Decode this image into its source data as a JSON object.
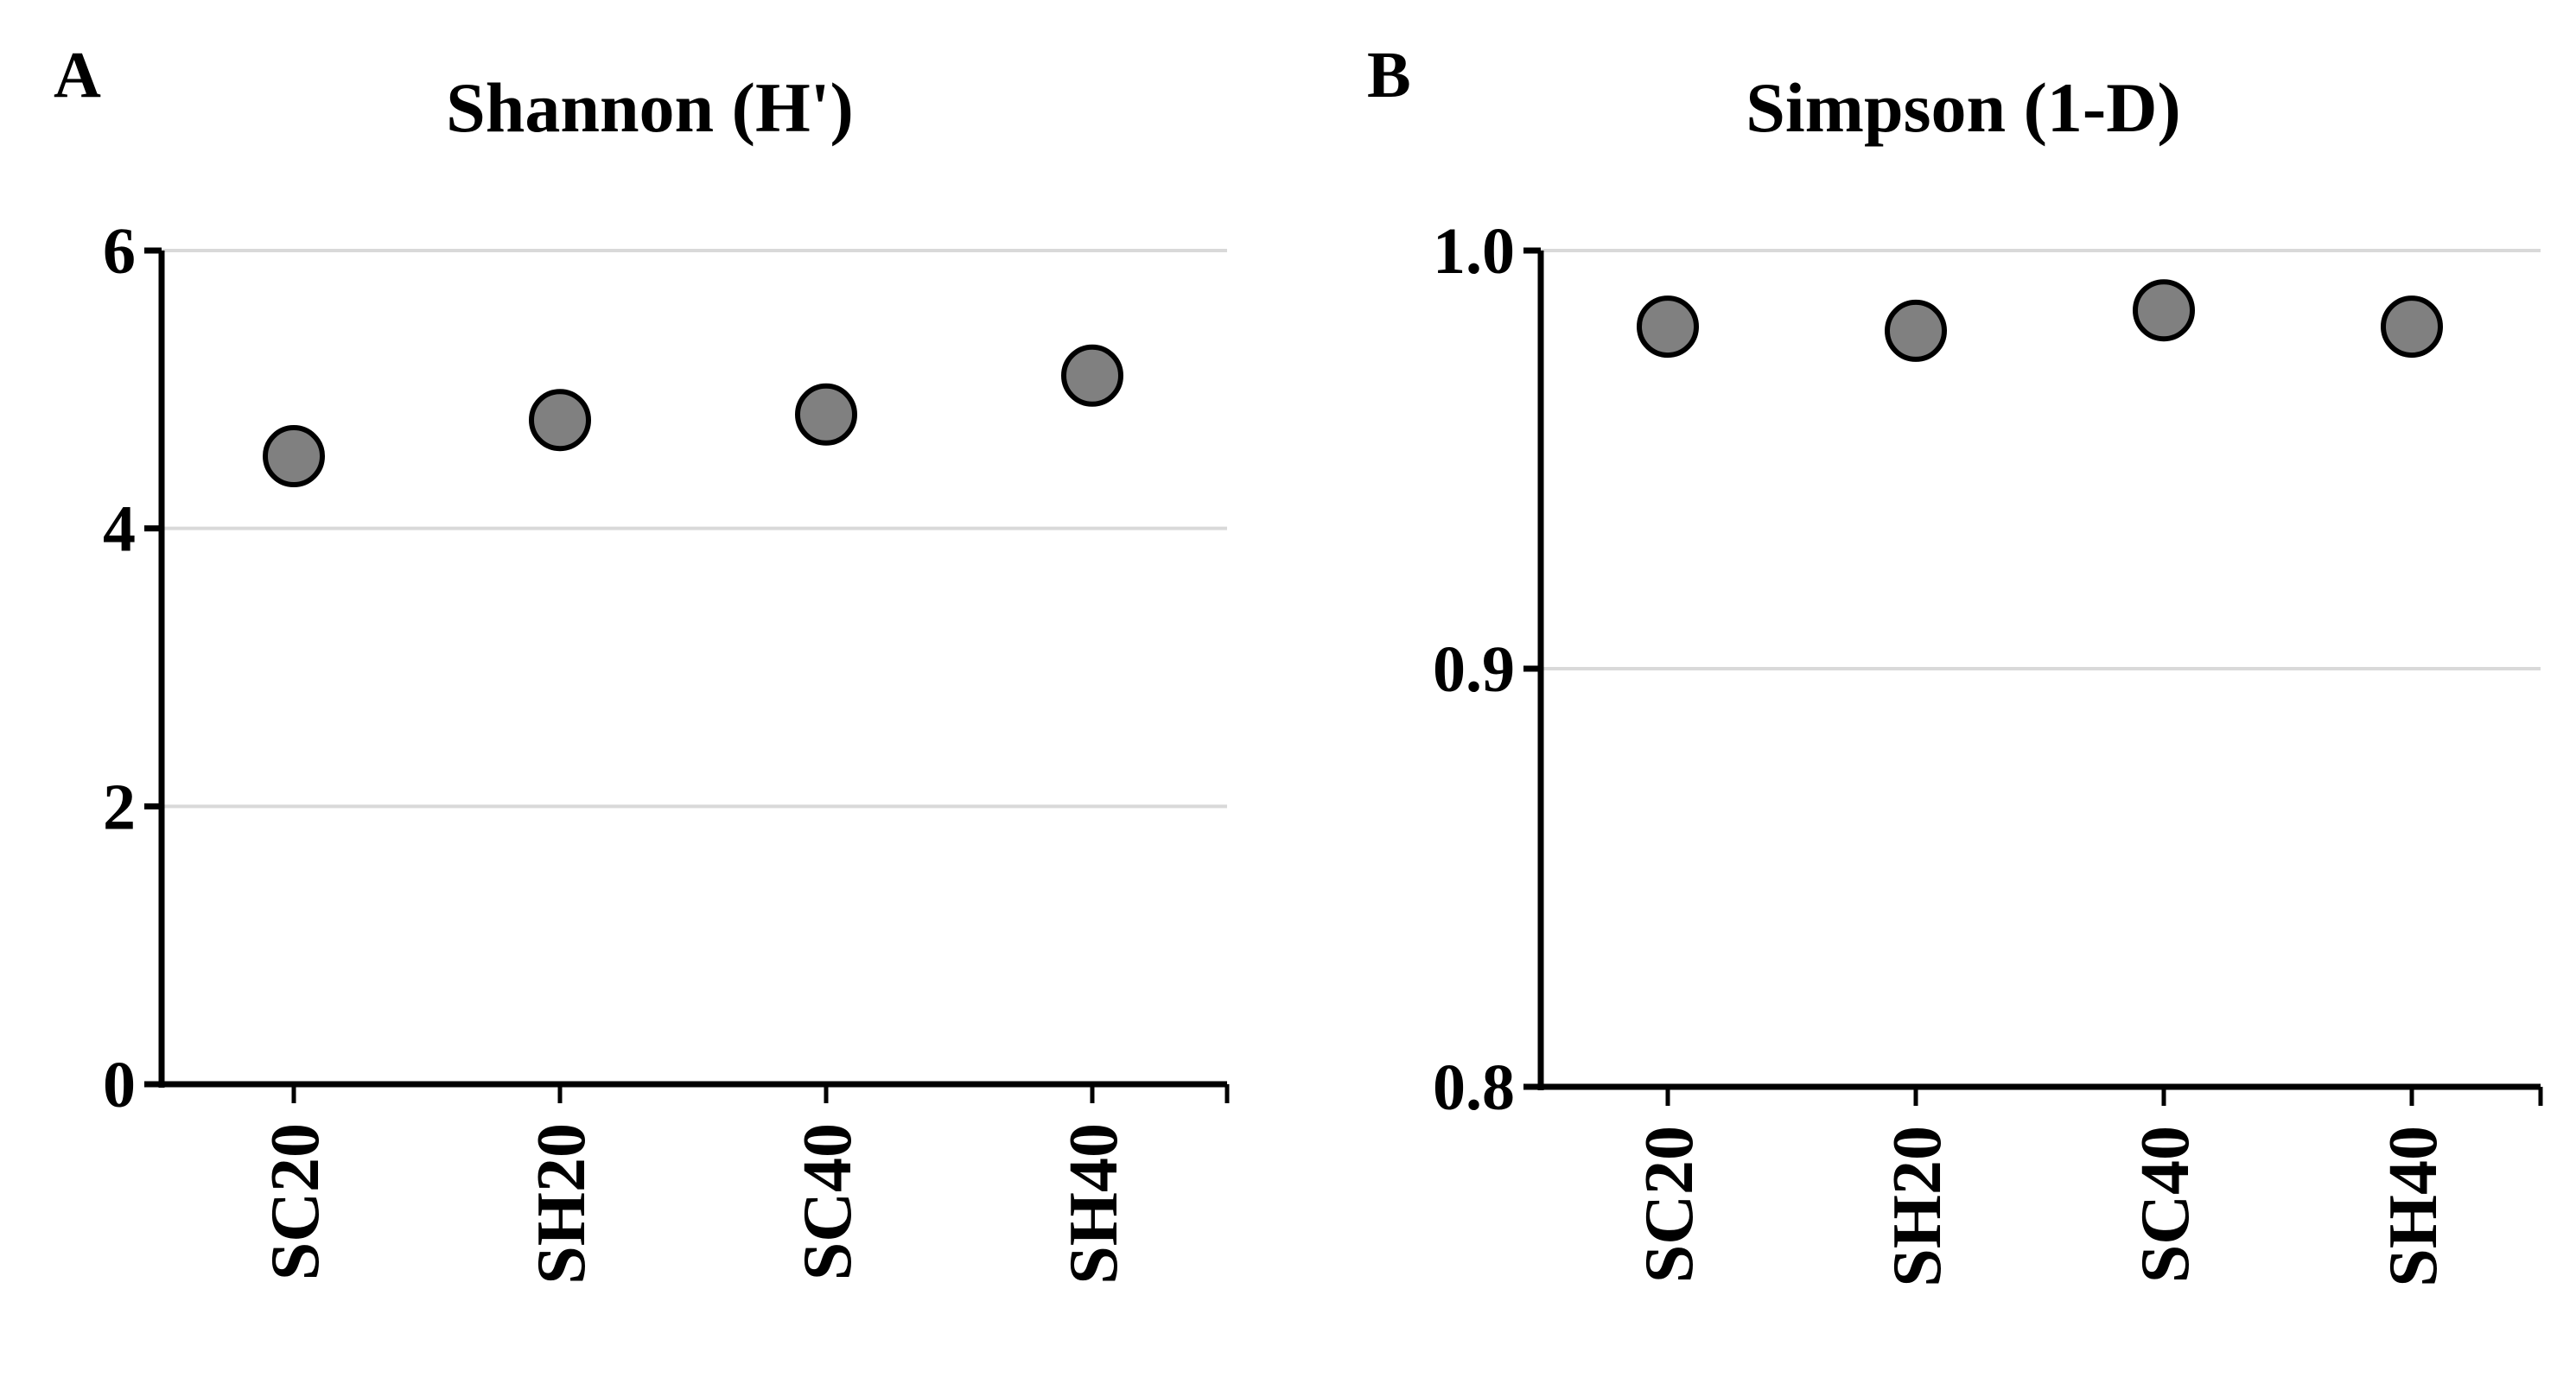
{
  "chart_data": [
    {
      "panel_label": "A",
      "type": "scatter",
      "title": "Shannon (H')",
      "xlabel": "",
      "ylabel": "",
      "categories": [
        "SC20",
        "SH20",
        "SC40",
        "SH40"
      ],
      "values": [
        4.52,
        4.78,
        4.82,
        5.1
      ],
      "ylim": [
        0,
        6
      ],
      "yticks": [
        "0",
        "2",
        "4",
        "6"
      ],
      "grid": true,
      "legend": "none"
    },
    {
      "panel_label": "B",
      "type": "scatter",
      "title": "Simpson (1-D)",
      "xlabel": "",
      "ylabel": "",
      "categories": [
        "SC20",
        "SH20",
        "SC40",
        "SH40"
      ],
      "values": [
        0.9818,
        0.9808,
        0.9857,
        0.9818
      ],
      "ylim": [
        0.8,
        1.0
      ],
      "yticks": [
        "0.8",
        "0.9",
        "1.0"
      ],
      "grid": true,
      "legend": "none"
    }
  ],
  "colors": {
    "marker_fill": "#808080",
    "marker_stroke": "#000000",
    "axis": "#000000",
    "gridline": "#d9d9d9"
  }
}
